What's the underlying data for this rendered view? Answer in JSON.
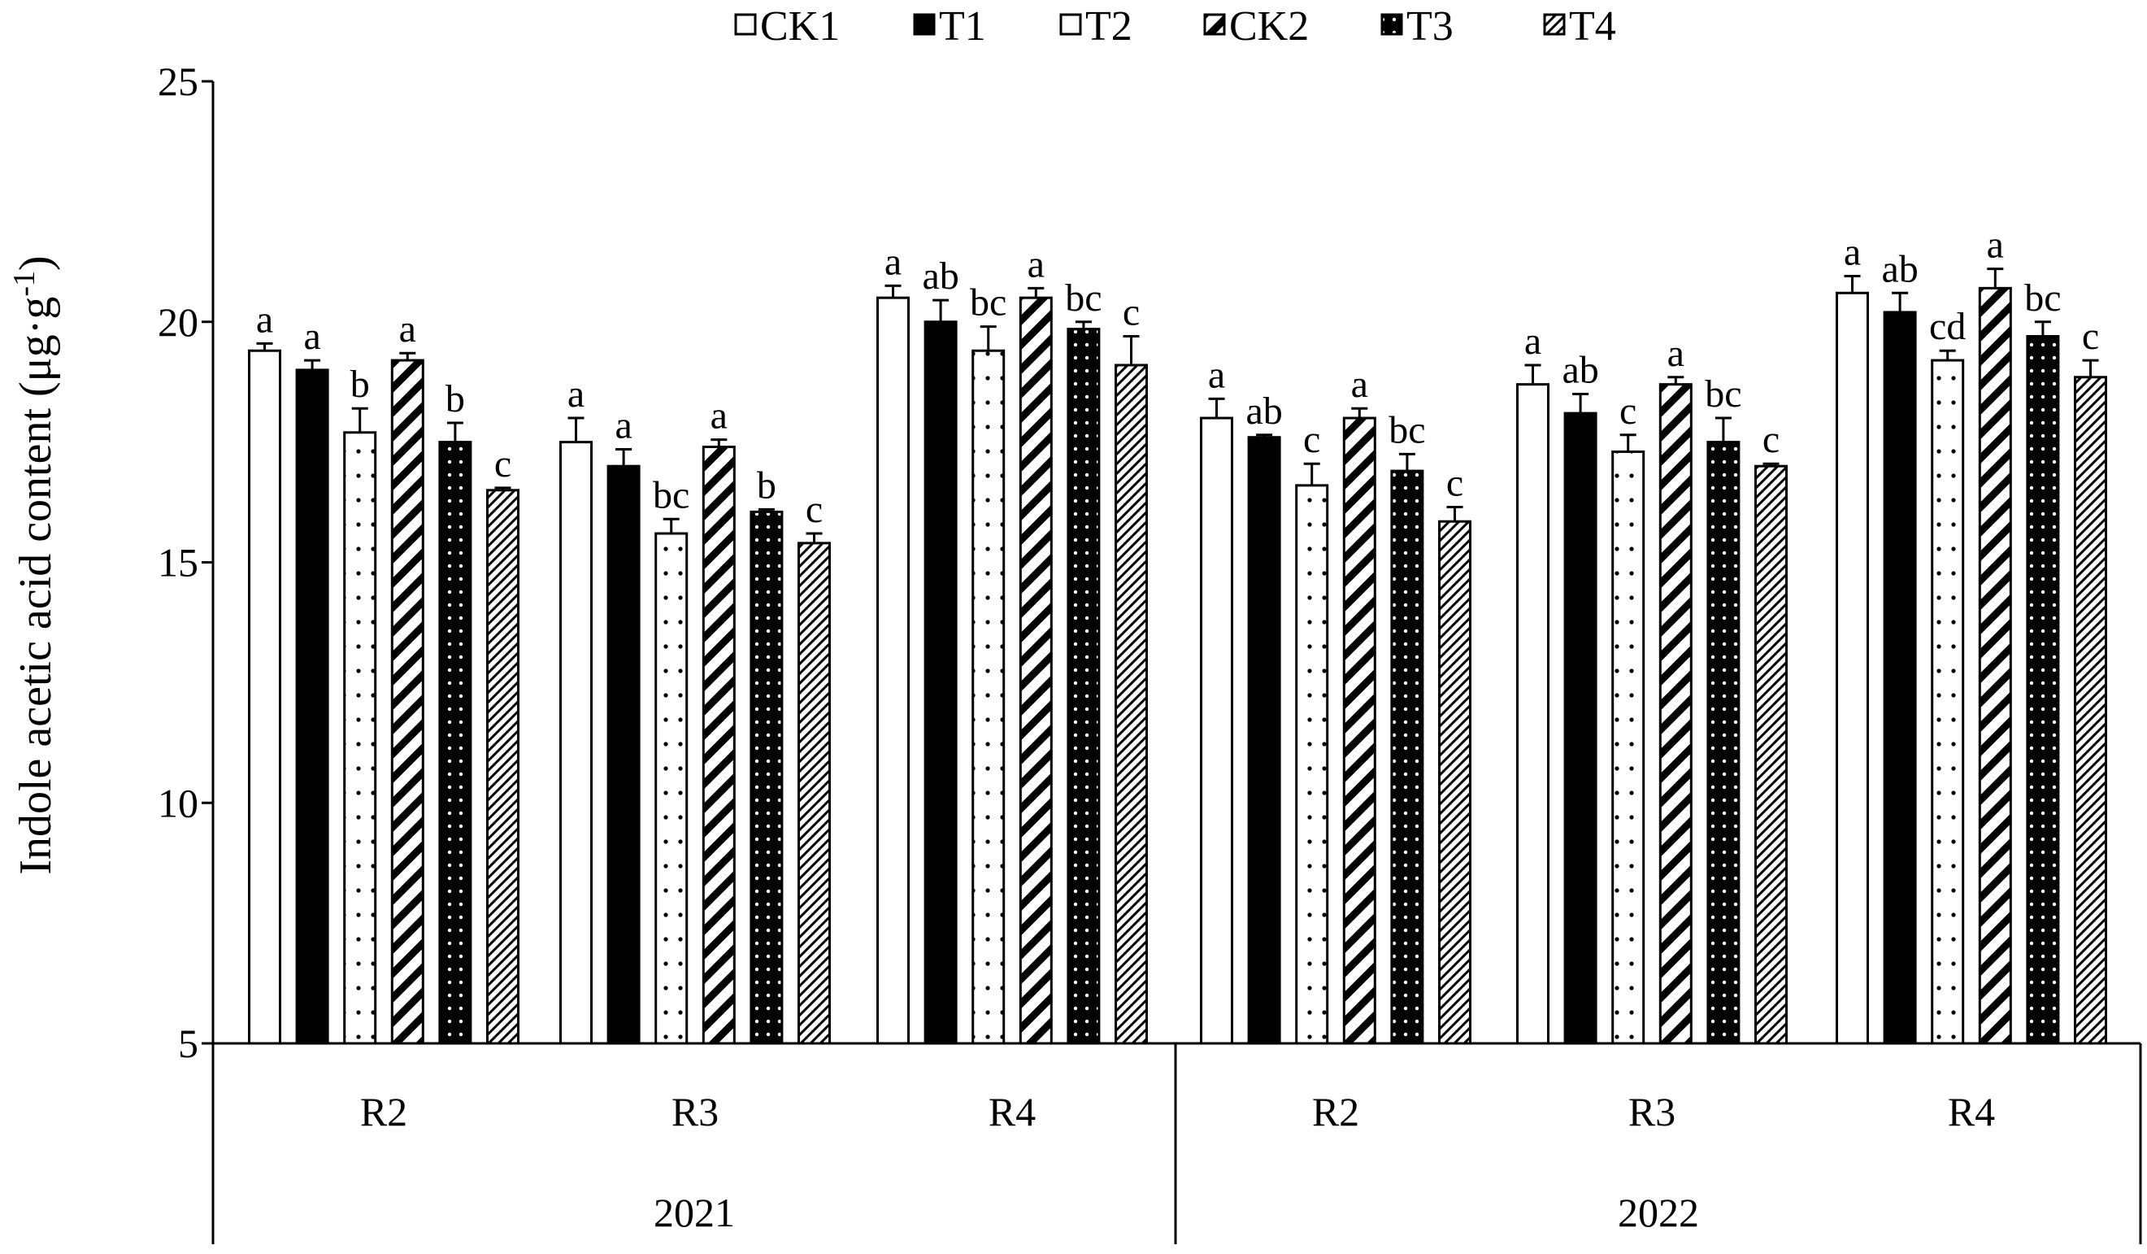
{
  "chart_data": {
    "type": "bar",
    "ylabel_main": "Indole acetic acid content (μg·g",
    "ylabel_sup": "-1",
    "ylabel_close": ")",
    "ylim": [
      5,
      25
    ],
    "yticks": [
      5,
      10,
      15,
      20,
      25
    ],
    "grid": false,
    "legend_position": "top",
    "groups": [
      {
        "year": "2021",
        "categories": [
          "R2",
          "R3",
          "R4"
        ]
      },
      {
        "year": "2022",
        "categories": [
          "R2",
          "R3",
          "R4"
        ]
      }
    ],
    "categories": [
      "R2",
      "R3",
      "R4",
      "R2",
      "R3",
      "R4"
    ],
    "series": [
      {
        "name": "CK1",
        "pattern": "white",
        "values": [
          19.4,
          17.5,
          20.5,
          18.0,
          18.7,
          20.6
        ],
        "errors": [
          0.15,
          0.5,
          0.25,
          0.4,
          0.4,
          0.35
        ],
        "labels": [
          "a",
          "a",
          "a",
          "a",
          "a",
          "a"
        ]
      },
      {
        "name": "T1",
        "pattern": "black",
        "values": [
          19.0,
          17.0,
          20.0,
          17.6,
          18.1,
          20.2
        ],
        "errors": [
          0.2,
          0.35,
          0.45,
          0.05,
          0.4,
          0.4
        ],
        "labels": [
          "a",
          "a",
          "ab",
          "ab",
          "ab",
          "ab"
        ]
      },
      {
        "name": "T2",
        "pattern": "dots",
        "values": [
          17.7,
          15.6,
          19.4,
          16.6,
          17.3,
          19.2
        ],
        "errors": [
          0.5,
          0.3,
          0.5,
          0.45,
          0.35,
          0.2
        ],
        "labels": [
          "b",
          "bc",
          "bc",
          "c",
          "c",
          "cd"
        ]
      },
      {
        "name": "CK2",
        "pattern": "diagonal",
        "values": [
          19.2,
          17.4,
          20.5,
          18.0,
          18.7,
          20.7
        ],
        "errors": [
          0.15,
          0.15,
          0.2,
          0.2,
          0.15,
          0.4
        ],
        "labels": [
          "a",
          "a",
          "a",
          "a",
          "a",
          "a"
        ]
      },
      {
        "name": "T3",
        "pattern": "black-dots",
        "values": [
          17.5,
          16.05,
          19.85,
          16.9,
          17.5,
          19.7
        ],
        "errors": [
          0.4,
          0.05,
          0.15,
          0.35,
          0.5,
          0.3
        ],
        "labels": [
          "b",
          "b",
          "bc",
          "bc",
          "bc",
          "bc"
        ]
      },
      {
        "name": "T4",
        "pattern": "fine-diagonal",
        "values": [
          16.5,
          15.4,
          19.1,
          15.85,
          17.0,
          18.85
        ],
        "errors": [
          0.05,
          0.2,
          0.6,
          0.3,
          0.05,
          0.35
        ],
        "labels": [
          "c",
          "c",
          "c",
          "c",
          "c",
          "c"
        ]
      }
    ]
  }
}
